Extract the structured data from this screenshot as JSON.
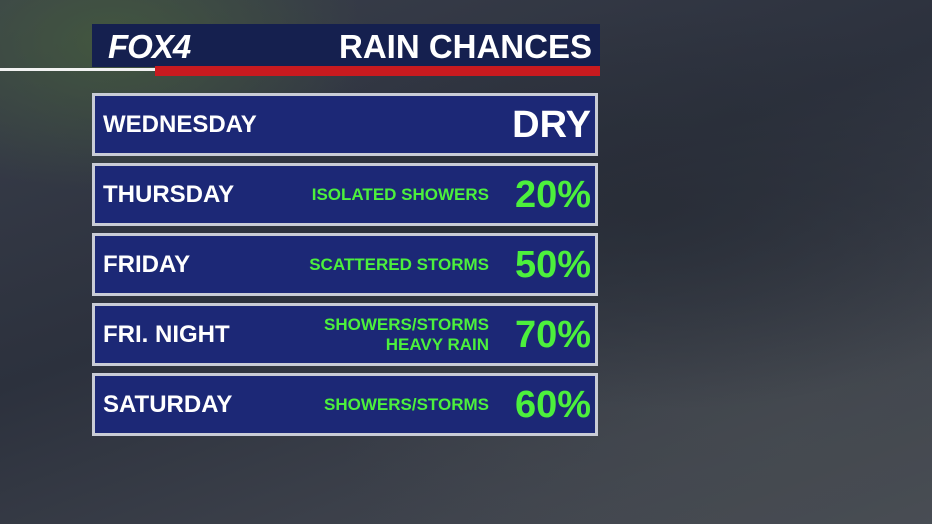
{
  "header": {
    "logo": "FOX4",
    "title": "RAIN CHANCES"
  },
  "rows": [
    {
      "day": "WEDNESDAY",
      "description": [],
      "chance": "DRY"
    },
    {
      "day": "THURSDAY",
      "description": [
        "ISOLATED SHOWERS"
      ],
      "chance": "20%"
    },
    {
      "day": "FRIDAY",
      "description": [
        "SCATTERED STORMS"
      ],
      "chance": "50%"
    },
    {
      "day": "FRI. NIGHT",
      "description": [
        "SHOWERS/STORMS",
        "HEAVY RAIN"
      ],
      "chance": "70%"
    },
    {
      "day": "SATURDAY",
      "description": [
        "SHOWERS/STORMS"
      ],
      "chance": "60%"
    }
  ]
}
